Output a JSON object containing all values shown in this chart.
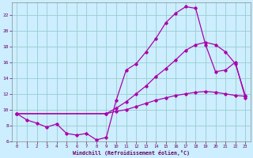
{
  "xlabel": "Windchill (Refroidissement éolien,°C)",
  "bg_color": "#cceeff",
  "grid_color": "#99cccc",
  "line_color": "#aa00aa",
  "xlim": [
    -0.5,
    23.5
  ],
  "ylim": [
    6,
    23.5
  ],
  "yticks": [
    6,
    8,
    10,
    12,
    14,
    16,
    18,
    20,
    22
  ],
  "xticks": [
    0,
    1,
    2,
    3,
    4,
    5,
    6,
    7,
    8,
    9,
    10,
    11,
    12,
    13,
    14,
    15,
    16,
    17,
    18,
    19,
    20,
    21,
    22,
    23
  ],
  "series1_x": [
    0,
    1,
    2,
    3,
    4,
    5,
    6,
    7,
    8,
    9,
    10,
    11,
    12,
    13,
    14,
    15,
    16,
    17,
    18,
    19,
    20,
    21,
    22,
    23
  ],
  "series1_y": [
    9.5,
    8.7,
    8.3,
    7.8,
    8.2,
    7.0,
    6.8,
    7.0,
    6.2,
    6.5,
    11.2,
    15.0,
    15.8,
    17.3,
    19.0,
    21.0,
    22.2,
    23.0,
    22.8,
    18.2,
    14.8,
    15.0,
    16.0,
    11.5
  ],
  "series2_x": [
    0,
    9,
    10,
    11,
    12,
    13,
    14,
    15,
    16,
    17,
    18,
    19,
    20,
    21,
    22,
    23
  ],
  "series2_y": [
    9.5,
    9.5,
    10.2,
    11.0,
    12.0,
    13.0,
    14.2,
    15.2,
    16.3,
    17.5,
    18.2,
    18.5,
    18.2,
    17.3,
    15.8,
    11.8
  ],
  "series3_x": [
    0,
    9,
    10,
    11,
    12,
    13,
    14,
    15,
    16,
    17,
    18,
    19,
    20,
    21,
    22,
    23
  ],
  "series3_y": [
    9.5,
    9.5,
    9.8,
    10.0,
    10.4,
    10.8,
    11.2,
    11.5,
    11.8,
    12.0,
    12.2,
    12.3,
    12.2,
    12.0,
    11.8,
    11.7
  ]
}
